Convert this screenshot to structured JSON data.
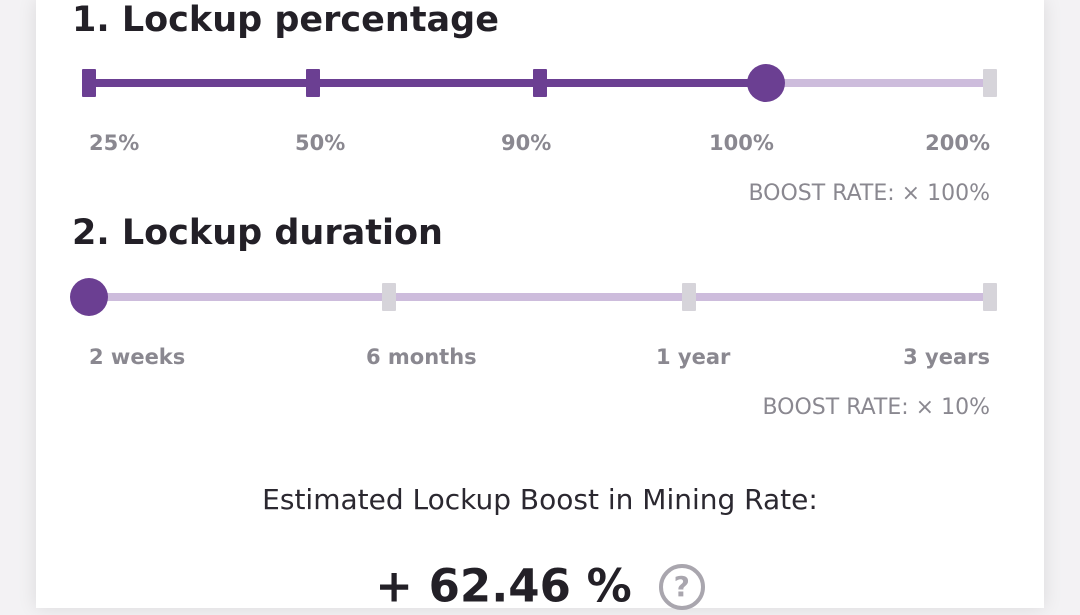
{
  "colors": {
    "accent": "#6b3f92",
    "track_light": "#cdbcdc",
    "tick_inactive": "#d6d4da",
    "label_gray": "#8a8890",
    "text_dark": "#232027"
  },
  "percentage": {
    "title": "1. Lockup percentage",
    "options": [
      "25%",
      "50%",
      "90%",
      "100%",
      "200%"
    ],
    "selected_index": 3,
    "boost_rate": "BOOST RATE: × 100%"
  },
  "duration": {
    "title": "2. Lockup duration",
    "options": [
      "2 weeks",
      "6 months",
      "1 year",
      "3 years"
    ],
    "selected_index": 0,
    "boost_rate": "BOOST RATE: × 10%"
  },
  "estimate": {
    "label": "Estimated Lockup Boost in Mining Rate:",
    "value": "+ 62.46 %",
    "help_icon": "question-circle-icon",
    "help_glyph": "?"
  }
}
